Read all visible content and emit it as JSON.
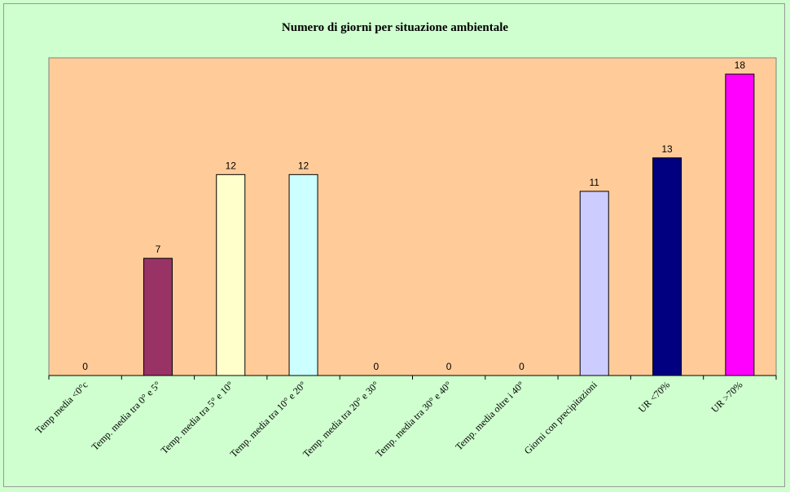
{
  "chart_data": {
    "type": "bar",
    "title": "Numero di giorni per situazione ambientale",
    "xlabel": "",
    "ylabel": "",
    "ylim": [
      0,
      18
    ],
    "grid": false,
    "legend": "none",
    "categories": [
      "Temp media <0°c",
      "Temp. media tra 0° e 5°",
      "Temp. media tra 5° e 10°",
      "Temp. media tra 10° e 20°",
      "Temp. media tra 20° e 30°",
      "Temp. media tra 30° e 40°",
      "Temp. media oltre i 40°",
      "Giorni con precipitazioni",
      "UR <70%",
      "UR >70%"
    ],
    "values": [
      0,
      7,
      12,
      12,
      0,
      0,
      0,
      11,
      13,
      18
    ],
    "colors": [
      "#9c9cff",
      "#993366",
      "#ffffcc",
      "#ccffff",
      "#660066",
      "#ff8080",
      "#0066cc",
      "#ccccff",
      "#000080",
      "#ff00ff"
    ],
    "plot_background": "#ffcc99",
    "page_background": "#cfffcf"
  }
}
